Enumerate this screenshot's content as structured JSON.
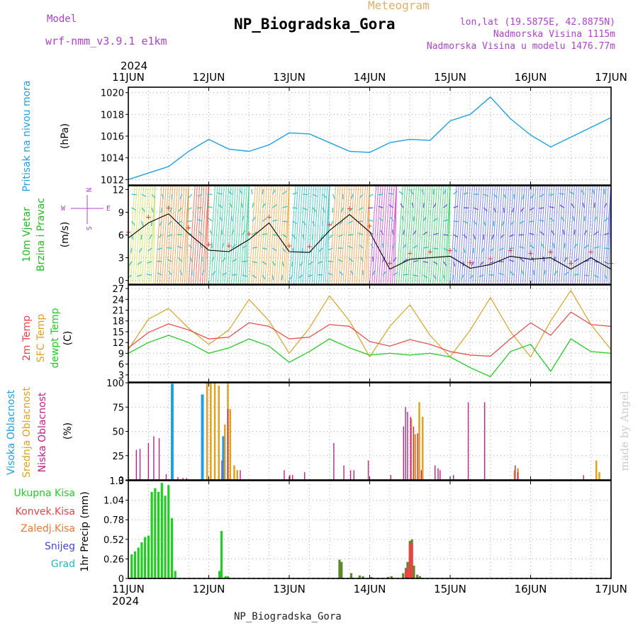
{
  "header": {
    "model_label": "Model",
    "model_name": "wrf-nmm_v3.9.1 e1km",
    "meteogram_label": "Meteogram",
    "station_title": "NP_Biogradska_Gora",
    "lonlat": "lon,lat (19.5875E, 42.8875N)",
    "altitude": "Nadmorska Visina 1115m",
    "model_altitude": "Nadmorska Visina u modelu 1476.77m",
    "year": "2024",
    "footer_station": "NP_Biogradska_Gora",
    "credit": "made by Angel"
  },
  "colors": {
    "pressure": "#1ea0e6",
    "wind_label": "#22bb22",
    "wind_speed": "#000000",
    "wind_gust_marker": "#e8402a",
    "temp_2m": "#e84444",
    "temp_sfc": "#e0a020",
    "temp_dewpt": "#22cc22",
    "cloud_high": "#1ea0e6",
    "cloud_mid": "#e0a020",
    "cloud_low": "#c0208a",
    "precip_total": "#22cc22",
    "precip_conv": "#e84444",
    "precip_stratiform": "#ee7733",
    "precip_snow": "#4444dd",
    "precip_graupel": "#22bbbb",
    "meta_text": "#b040d0",
    "meteogram_text": "#e0b060",
    "credit_text": "#cccccc"
  },
  "chart_data": [
    {
      "type": "line",
      "ylabel_main": "Pritisak na nivou mora",
      "ylabel_unit": "(hPa)",
      "ylim": [
        1011.5,
        1020.5
      ],
      "yticks": [
        1012,
        1014,
        1016,
        1018,
        1020
      ],
      "x": [
        0,
        6,
        12,
        18,
        24,
        30,
        36,
        42,
        48,
        54,
        60,
        66,
        72,
        78,
        84,
        90,
        96,
        102,
        108,
        114,
        120,
        126,
        132,
        138,
        144
      ],
      "series": [
        {
          "values": [
            1012.0,
            1012.6,
            1013.2,
            1014.6,
            1015.7,
            1014.8,
            1014.6,
            1015.2,
            1016.3,
            1016.2,
            1015.4,
            1014.6,
            1014.5,
            1015.4,
            1015.7,
            1015.6,
            1017.4,
            1018.0,
            1019.6,
            1017.6,
            1016.1,
            1015.0,
            1015.9,
            1016.8,
            1017.7
          ]
        }
      ]
    },
    {
      "type": "line",
      "ylabel_main": "10m Vjetar",
      "ylabel_sub": "Brzina i Pravac",
      "ylabel_unit": "(m/s)",
      "compass": {
        "north": "N",
        "west": "W",
        "east": "E",
        "south": "S"
      },
      "ylim": [
        -0.5,
        12.5
      ],
      "yticks": [
        0,
        3,
        6,
        9,
        12
      ],
      "x": [
        0,
        6,
        12,
        18,
        24,
        30,
        36,
        42,
        48,
        54,
        60,
        66,
        72,
        78,
        84,
        90,
        96,
        102,
        108,
        114,
        120,
        126,
        132,
        138,
        144
      ],
      "series": [
        {
          "values": [
            5.6,
            7.6,
            8.8,
            6.2,
            4.0,
            3.8,
            5.4,
            7.6,
            3.8,
            3.7,
            6.6,
            8.7,
            6.4,
            1.5,
            2.8,
            3.0,
            3.2,
            1.6,
            2.1,
            3.2,
            2.8,
            3.0,
            1.5,
            3.0,
            1.5
          ]
        }
      ]
    },
    {
      "type": "line",
      "ylabel_main": "2m Temp",
      "ylabel_sub": "SFC Temp",
      "ylabel_sub2": "dewpt Temp",
      "ylabel_unit": "(C)",
      "ylim": [
        1,
        28
      ],
      "yticks": [
        3,
        6,
        9,
        12,
        15,
        18,
        21,
        24,
        27
      ],
      "x": [
        0,
        6,
        12,
        18,
        24,
        30,
        36,
        42,
        48,
        54,
        60,
        66,
        72,
        78,
        84,
        90,
        96,
        102,
        108,
        114,
        120,
        126,
        132,
        138,
        144
      ],
      "series": [
        {
          "name": "2m Temp",
          "values": [
            10.5,
            14.8,
            17.2,
            15.5,
            13.0,
            13.5,
            17.5,
            16.5,
            13.0,
            13.5,
            17.0,
            16.5,
            12.3,
            11.0,
            12.8,
            11.5,
            9.5,
            8.5,
            8.2,
            13.0,
            17.5,
            14.0,
            20.5,
            17.0,
            16.5
          ]
        },
        {
          "name": "SFC Temp",
          "values": [
            10.0,
            18.5,
            21.5,
            16.0,
            11.5,
            15.5,
            24.0,
            18.0,
            9.0,
            16.0,
            25.0,
            18.0,
            8.0,
            16.5,
            22.5,
            14.0,
            8.0,
            15.5,
            24.5,
            15.0,
            8.0,
            18.0,
            26.5,
            17.0,
            10.0
          ]
        },
        {
          "name": "dewpt Temp",
          "values": [
            9.0,
            12.0,
            14.0,
            12.0,
            9.0,
            10.5,
            13.0,
            11.0,
            6.5,
            9.5,
            13.0,
            10.5,
            8.5,
            9.0,
            8.5,
            9.0,
            8.0,
            5.0,
            2.5,
            9.5,
            11.5,
            4.0,
            13.0,
            9.5,
            9.0
          ]
        }
      ]
    },
    {
      "type": "bar",
      "ylabel_main": "Visoka Oblacnost",
      "ylabel_sub": "Srednja Oblacnost",
      "ylabel_sub2": "Niska Oblacnost",
      "ylabel_unit": "(%)",
      "ylim": [
        0,
        100
      ],
      "yticks": [
        0,
        25,
        50,
        75,
        100
      ],
      "series": [
        {
          "name": "Visoka Oblacnost",
          "x": [
            13,
            13.2,
            22,
            22.2,
            28.3
          ],
          "values": [
            99,
            99,
            88,
            88,
            45
          ]
        },
        {
          "name": "Srednja Oblacnost",
          "x": [
            23.5,
            24.6,
            25.8,
            27,
            28.8,
            29.7,
            30.4,
            31.6,
            32.5,
            84.4,
            85.6,
            86.8,
            87.8,
            115.2,
            116.2,
            139.6,
            140.5
          ],
          "values": [
            100,
            100,
            100,
            97,
            57,
            100,
            73,
            15,
            10,
            63,
            47,
            80,
            65,
            10,
            12,
            20,
            8
          ]
        },
        {
          "name": "Niska Oblacnost",
          "x": [
            2.4,
            3.5,
            6,
            7.6,
            9.2,
            11.3,
            14.8,
            16.3,
            17.4,
            27.9,
            29.7,
            33.4,
            46.5,
            48.2,
            49,
            52.6,
            61.3,
            64.3,
            66.3,
            67.3,
            71.6,
            78.3,
            82.1,
            82.7,
            83.3,
            84.2,
            85.1,
            86.3,
            87.4,
            91.5,
            92.4,
            93,
            97,
            101.4,
            106.3,
            115.4,
            116.2,
            135.8
          ],
          "values": [
            31,
            32,
            38,
            45,
            43,
            6,
            3,
            2,
            2,
            20,
            73,
            10,
            10,
            5,
            5,
            8,
            38,
            15,
            10,
            10,
            20,
            5,
            55,
            75,
            70,
            65,
            55,
            48,
            10,
            15,
            12,
            10,
            5,
            80,
            80,
            15,
            8,
            5
          ]
        }
      ]
    },
    {
      "type": "bar",
      "ylabel_main": "1hr Precip",
      "ylabel_unit": "(mm)",
      "ylim": [
        0,
        1.3
      ],
      "yticks": [
        0,
        0.26,
        0.52,
        0.78,
        1.04,
        1.3
      ],
      "ytick_labels": [
        "0",
        "0.26",
        "0.52",
        "0.78",
        "1.04",
        "1.3"
      ],
      "legend": [
        {
          "label": "Ukupna Kisa"
        },
        {
          "label": "Konvek.Kisa"
        },
        {
          "label": "Zaledj.Kisa"
        },
        {
          "label": "Snijeg"
        },
        {
          "label": "Grad"
        }
      ],
      "series": [
        {
          "name": "Ukupna Kisa",
          "x": [
            1,
            2,
            3,
            4,
            5,
            6,
            7,
            8,
            9,
            10,
            11,
            12,
            13,
            14,
            27.2,
            27.8,
            29,
            29.7,
            63,
            63.6,
            66.5,
            69,
            70,
            72.5,
            77.5,
            78.5,
            82,
            82.8,
            83.3,
            84,
            84.6,
            85.2,
            86.2,
            87
          ],
          "values": [
            0.32,
            0.36,
            0.41,
            0.48,
            0.55,
            0.57,
            1.15,
            1.2,
            1.15,
            1.27,
            1.1,
            1.24,
            0.8,
            0.1,
            0.1,
            0.63,
            0.03,
            0.03,
            0.25,
            0.22,
            0.07,
            0.04,
            0.03,
            0.02,
            0.02,
            0.03,
            0.07,
            0.14,
            0.22,
            0.5,
            0.52,
            0.17,
            0.05,
            0.03
          ]
        },
        {
          "name": "Konvek.Kisa",
          "x": [
            82.8,
            83.3,
            84,
            84.6
          ],
          "values": [
            0.1,
            0.15,
            0.45,
            0.48
          ]
        }
      ]
    }
  ],
  "x_axis": {
    "top_year": "2024",
    "bottom_year": "2024",
    "top_labels": [
      "11JUN",
      "12JUN",
      "13JUN",
      "14JUN",
      "15JUN",
      "16JUN",
      "17JUN"
    ],
    "bottom_labels": [
      "11JUN",
      "12JUN",
      "13JUN",
      "14JUN",
      "15JUN",
      "16JUN",
      "17JUN"
    ],
    "start_hours": 0,
    "end_hours": 144
  }
}
